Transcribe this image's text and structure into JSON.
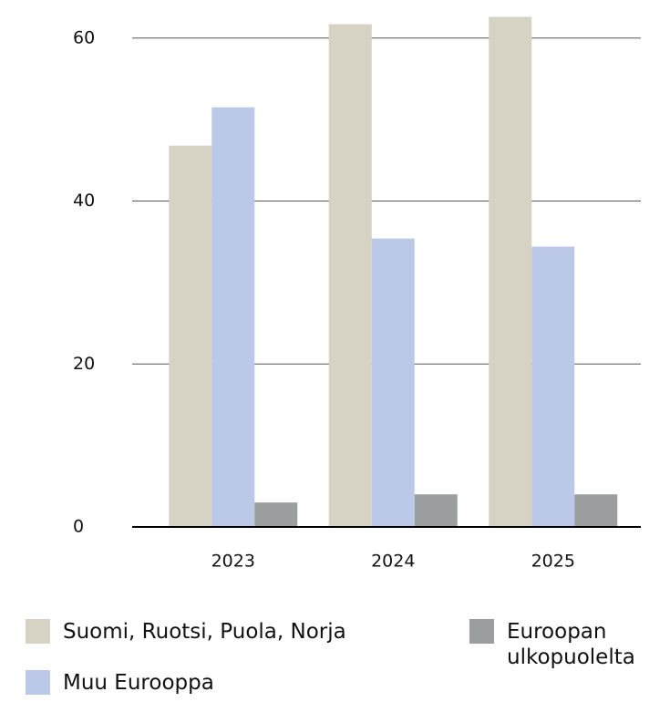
{
  "chart_data": {
    "type": "bar",
    "categories": [
      "2023",
      "2024",
      "2025"
    ],
    "series": [
      {
        "name": "Suomi, Ruotsi, Puola, Norja",
        "color": "#d6d2c4",
        "values": [
          46.8,
          61.7,
          62.6
        ]
      },
      {
        "name": "Muu Eurooppa",
        "color": "#bcc8e8",
        "values": [
          51.5,
          35.4,
          34.4
        ]
      },
      {
        "name": "Euroopan ulkopuolelta",
        "color": "#9a9e9e",
        "values": [
          3.0,
          4.0,
          4.0
        ]
      }
    ],
    "ylim": [
      0,
      64
    ],
    "yticks": [
      0,
      20,
      40,
      60
    ],
    "grid": true,
    "legend": "bottom"
  }
}
